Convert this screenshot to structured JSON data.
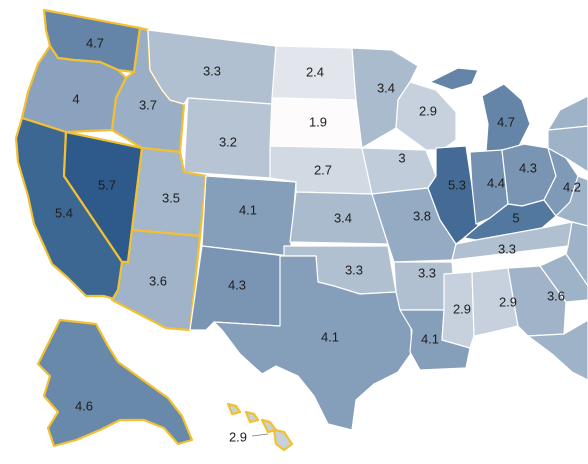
{
  "colors": {
    "low": "#fdfbfb",
    "high": "#2d5a8a",
    "stroke": "#ffffff",
    "highlight_stroke": "#f2c033"
  },
  "scale": {
    "min": 1.9,
    "max": 5.7
  },
  "states": [
    {
      "id": "WA",
      "value": 4.7,
      "label": "4.7",
      "highlight": true
    },
    {
      "id": "OR",
      "value": 4.0,
      "label": "4",
      "highlight": true
    },
    {
      "id": "CA",
      "value": 5.4,
      "label": "5.4",
      "highlight": true
    },
    {
      "id": "NV",
      "value": 5.7,
      "label": "5.7",
      "highlight": true
    },
    {
      "id": "ID",
      "value": 3.7,
      "label": "3.7",
      "highlight": true
    },
    {
      "id": "MT",
      "value": 3.3,
      "label": "3.3",
      "highlight": false
    },
    {
      "id": "WY",
      "value": 3.2,
      "label": "3.2",
      "highlight": false
    },
    {
      "id": "UT",
      "value": 3.5,
      "label": "3.5",
      "highlight": true
    },
    {
      "id": "AZ",
      "value": 3.6,
      "label": "3.6",
      "highlight": true
    },
    {
      "id": "CO",
      "value": 4.1,
      "label": "4.1",
      "highlight": false
    },
    {
      "id": "NM",
      "value": 4.3,
      "label": "4.3",
      "highlight": false
    },
    {
      "id": "ND",
      "value": 2.4,
      "label": "2.4",
      "highlight": false
    },
    {
      "id": "SD",
      "value": 1.9,
      "label": "1.9",
      "highlight": false
    },
    {
      "id": "NE",
      "value": 2.7,
      "label": "2.7",
      "highlight": false
    },
    {
      "id": "KS",
      "value": 3.4,
      "label": "3.4",
      "highlight": false
    },
    {
      "id": "OK",
      "value": 3.3,
      "label": "3.3",
      "highlight": false
    },
    {
      "id": "TX",
      "value": 4.1,
      "label": "4.1",
      "highlight": false
    },
    {
      "id": "MN",
      "value": 3.4,
      "label": "3.4",
      "highlight": false
    },
    {
      "id": "IA",
      "value": 3.0,
      "label": "3",
      "highlight": false
    },
    {
      "id": "MO",
      "value": 3.8,
      "label": "3.8",
      "highlight": false
    },
    {
      "id": "AR",
      "value": 3.3,
      "label": "3.3",
      "highlight": false
    },
    {
      "id": "LA",
      "value": 4.1,
      "label": "4.1",
      "highlight": false
    },
    {
      "id": "WI",
      "value": 2.9,
      "label": "2.9",
      "highlight": false
    },
    {
      "id": "IL",
      "value": 5.3,
      "label": "5.3",
      "highlight": false
    },
    {
      "id": "MI",
      "value": 4.7,
      "label": "4.7",
      "highlight": false
    },
    {
      "id": "IN",
      "value": 4.4,
      "label": "4.4",
      "highlight": false
    },
    {
      "id": "OH",
      "value": 4.3,
      "label": "4.3",
      "highlight": false
    },
    {
      "id": "KY",
      "value": 5.0,
      "label": "5",
      "highlight": false
    },
    {
      "id": "TN",
      "value": 3.3,
      "label": "3.3",
      "highlight": false
    },
    {
      "id": "MS",
      "value": 2.9,
      "label": "2.9",
      "highlight": false
    },
    {
      "id": "AL",
      "value": 2.9,
      "label": "2.9",
      "highlight": false
    },
    {
      "id": "GA",
      "value": 3.6,
      "label": "3.6",
      "highlight": false
    },
    {
      "id": "WV",
      "value": 4.2,
      "label": "4.2",
      "highlight": false
    },
    {
      "id": "AK",
      "value": 4.6,
      "label": "4.6",
      "highlight": true
    },
    {
      "id": "HI",
      "value": 2.9,
      "label": "2.9",
      "highlight": true
    },
    {
      "id": "PA",
      "value": null,
      "label": "",
      "highlight": false
    },
    {
      "id": "VA",
      "value": null,
      "label": "",
      "highlight": false
    },
    {
      "id": "NC",
      "value": null,
      "label": "",
      "highlight": false
    },
    {
      "id": "SC",
      "value": null,
      "label": "",
      "highlight": false
    },
    {
      "id": "FL",
      "value": null,
      "label": "",
      "highlight": false
    },
    {
      "id": "NY",
      "value": null,
      "label": "",
      "highlight": false
    }
  ]
}
